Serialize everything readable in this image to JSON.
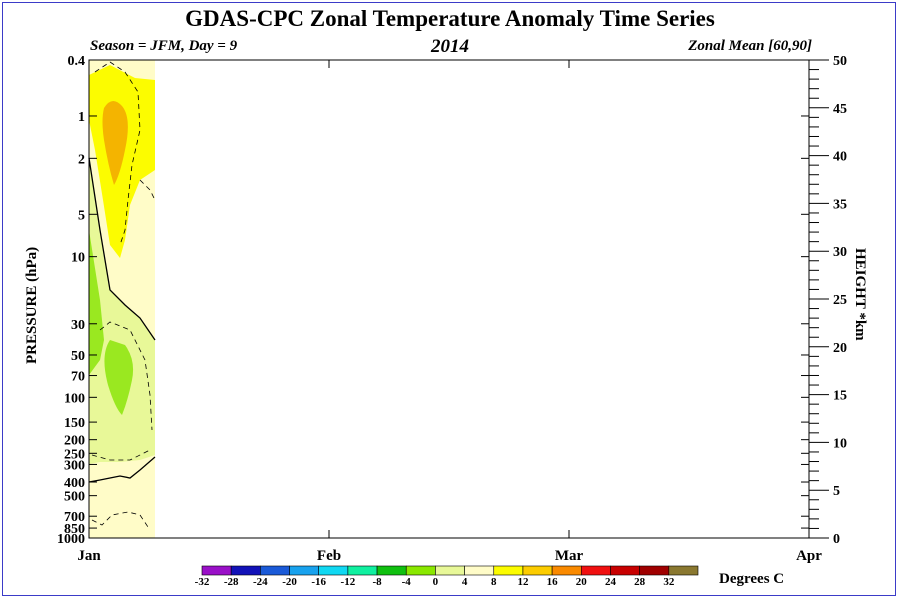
{
  "header": {
    "title": "GDAS-CPC Zonal Temperature Anomaly Time Series",
    "season": "Season = JFM, Day =   9",
    "year": "2014",
    "zonal": "Zonal Mean [60,90]"
  },
  "chart_data": {
    "type": "heatmap",
    "ylabel": "PRESSURE (hPa)",
    "y2label": "HEIGHT *km",
    "x_ticks": [
      "Jan",
      "Feb",
      "Mar",
      "Apr"
    ],
    "y_ticks": [
      0.4,
      1,
      2,
      5,
      10,
      30,
      50,
      70,
      100,
      150,
      200,
      250,
      300,
      400,
      500,
      700,
      850,
      1000
    ],
    "y_scale": "log",
    "ylim": [
      1000,
      0.4
    ],
    "y2_ticks": [
      0,
      5,
      10,
      15,
      20,
      25,
      30,
      35,
      40,
      45,
      50
    ],
    "y2lim": [
      0,
      50
    ],
    "data_extent_days": 9,
    "colorbar": {
      "levels": [
        -32,
        -28,
        -24,
        -20,
        -16,
        -12,
        -8,
        -4,
        0,
        4,
        8,
        12,
        16,
        20,
        24,
        28,
        32
      ],
      "colors": [
        "#9a10c8",
        "#1212b8",
        "#1a5ad8",
        "#18a2ee",
        "#10d8f2",
        "#10f0a0",
        "#10c010",
        "#8ae800",
        "#e8f898",
        "#fffcc8",
        "#fcfc00",
        "#fccc00",
        "#fa8a00",
        "#f01010",
        "#c80000",
        "#a00000",
        "#8a7830"
      ],
      "units": "Degrees C"
    },
    "regions": [
      {
        "range": "0 to 4",
        "area": "near-surface to upper stratosphere"
      },
      {
        "range": "4 to 8",
        "area": "upper stratosphere, 0.4-10 hPa"
      },
      {
        "range": "8 to 12",
        "area": "core near 1-3 hPa"
      },
      {
        "range": "-4 to 0",
        "area": "mid stratosphere 20-300 hPa"
      },
      {
        "range": "-8 to -4",
        "area": "lower stratosphere near 50-130 hPa"
      }
    ]
  }
}
